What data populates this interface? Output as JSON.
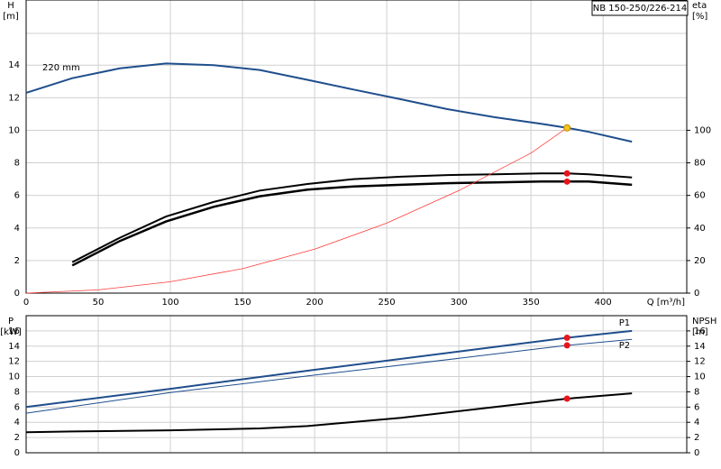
{
  "chart_data": [
    {
      "type": "line",
      "title": "NB 150-250/226-214",
      "ylabel": "H",
      "yunit": "[m]",
      "y2label": "eta",
      "y2unit": "[%]",
      "xlabel": "Q [m³/h]",
      "xlim": [
        0,
        458
      ],
      "xticks": [
        0,
        50,
        100,
        150,
        200,
        250,
        300,
        350,
        400
      ],
      "ylim": [
        0,
        18
      ],
      "yticks": [
        0,
        2,
        4,
        6,
        8,
        10,
        12,
        14
      ],
      "y2lim": [
        0,
        180
      ],
      "y2ticks": [
        0,
        20,
        40,
        60,
        80,
        100
      ],
      "grid": true,
      "show_xtick_labels": true,
      "series": [
        {
          "name": "220 mm",
          "color": "#1f4e8c",
          "width": 2,
          "label_at": "start",
          "x": [
            0,
            32,
            65,
            97,
            130,
            162,
            195,
            227,
            260,
            292,
            325,
            357,
            375,
            390,
            420
          ],
          "values": [
            12.3,
            13.2,
            13.8,
            14.1,
            14.0,
            13.7,
            13.1,
            12.5,
            11.9,
            11.3,
            10.8,
            10.4,
            10.15,
            9.9,
            9.3
          ]
        },
        {
          "color": "#000000",
          "width": 2,
          "axis": "y2",
          "x": [
            32,
            65,
            97,
            130,
            162,
            195,
            227,
            260,
            292,
            325,
            357,
            375,
            390,
            420
          ],
          "values": [
            19,
            34,
            47,
            56,
            63,
            67,
            70,
            71.5,
            72.5,
            73,
            73.5,
            73.5,
            73,
            71
          ]
        },
        {
          "color": "#000000",
          "width": 2.5,
          "axis": "y2",
          "x": [
            32,
            65,
            97,
            130,
            162,
            195,
            227,
            260,
            292,
            325,
            357,
            375,
            390,
            420
          ],
          "values": [
            17,
            32,
            44,
            53,
            59.5,
            63.5,
            65.5,
            66.5,
            67.5,
            68,
            68.5,
            68.5,
            68.5,
            66.5
          ]
        },
        {
          "color": "#ff3b3b",
          "width": 0.8,
          "x": [
            0,
            50,
            100,
            150,
            200,
            250,
            300,
            350,
            375
          ],
          "values": [
            0,
            0.2,
            0.7,
            1.5,
            2.7,
            4.3,
            6.3,
            8.6,
            10.15
          ]
        }
      ],
      "markers": [
        {
          "x": 375,
          "y": 10.15,
          "color": "#f5c518"
        },
        {
          "x": 375,
          "y": 73.5,
          "axis": "y2",
          "color": "#e8141b"
        },
        {
          "x": 375,
          "y": 68.5,
          "axis": "y2",
          "color": "#e8141b"
        }
      ]
    },
    {
      "type": "line",
      "ylabel": "P",
      "yunit": "[kW]",
      "y2label": "NPSH",
      "y2unit": "[m]",
      "xlim": [
        0,
        458
      ],
      "xticks": [
        0,
        50,
        100,
        150,
        200,
        250,
        300,
        350,
        400
      ],
      "ylim": [
        0,
        18
      ],
      "yticks": [
        0,
        2,
        4,
        6,
        8,
        10,
        12,
        14,
        16
      ],
      "y2lim": [
        0,
        18
      ],
      "y2ticks": [
        0,
        2,
        4,
        6,
        8,
        10,
        12,
        14,
        16
      ],
      "grid": true,
      "show_xtick_labels": false,
      "series": [
        {
          "name": "P1",
          "color": "#1f4e8c",
          "width": 2,
          "label_at": "end-above",
          "x": [
            0,
            100,
            200,
            300,
            375,
            420
          ],
          "values": [
            6.0,
            8.4,
            10.9,
            13.3,
            15.1,
            16.0
          ]
        },
        {
          "name": "P2",
          "color": "#1f4e8c",
          "width": 1,
          "label_at": "end-below",
          "x": [
            0,
            100,
            200,
            300,
            375,
            420
          ],
          "values": [
            5.2,
            7.9,
            10.2,
            12.4,
            14.1,
            14.9
          ]
        },
        {
          "color": "#000000",
          "width": 2,
          "axis": "y2",
          "x": [
            0,
            32,
            100,
            162,
            195,
            260,
            325,
            375,
            420
          ],
          "values": [
            2.7,
            2.8,
            2.95,
            3.2,
            3.5,
            4.6,
            6.0,
            7.1,
            7.8
          ]
        }
      ],
      "markers": [
        {
          "x": 375,
          "y": 15.1,
          "color": "#e8141b"
        },
        {
          "x": 375,
          "y": 14.1,
          "color": "#e8141b"
        },
        {
          "x": 375,
          "y": 7.1,
          "axis": "y2",
          "color": "#e8141b"
        }
      ]
    }
  ]
}
